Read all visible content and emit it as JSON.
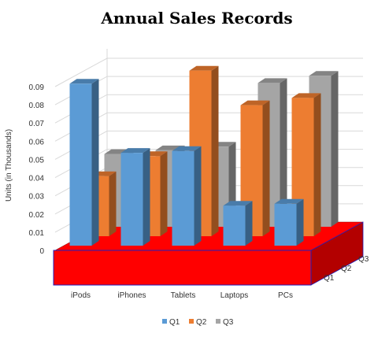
{
  "chart_data": {
    "type": "bar",
    "title": "Annual Sales Records",
    "ylabel": "Units (in Thousands)",
    "xlabel": "",
    "ylim": [
      0,
      0.09
    ],
    "yticks": [
      "0",
      "0.01",
      "0.02",
      "0.03",
      "0.04",
      "0.05",
      "0.06",
      "0.07",
      "0.08",
      "0.09"
    ],
    "categories": [
      "iPods",
      "iPhones",
      "Tablets",
      "Laptops",
      "PCs"
    ],
    "depth_labels": [
      "Q1",
      "Q2",
      "Q3"
    ],
    "series": [
      {
        "name": "Q1",
        "color": "#5B9BD5",
        "values": [
          0.089,
          0.051,
          0.052,
          0.022,
          0.023
        ]
      },
      {
        "name": "Q2",
        "color": "#ED7D31",
        "values": [
          0.033,
          0.044,
          0.091,
          0.072,
          0.076
        ]
      },
      {
        "name": "Q3",
        "color": "#A5A5A5",
        "values": [
          0.04,
          0.042,
          0.044,
          0.079,
          0.083
        ]
      }
    ],
    "floor_color": "#FF0000",
    "grid": true,
    "legend_position": "bottom"
  }
}
